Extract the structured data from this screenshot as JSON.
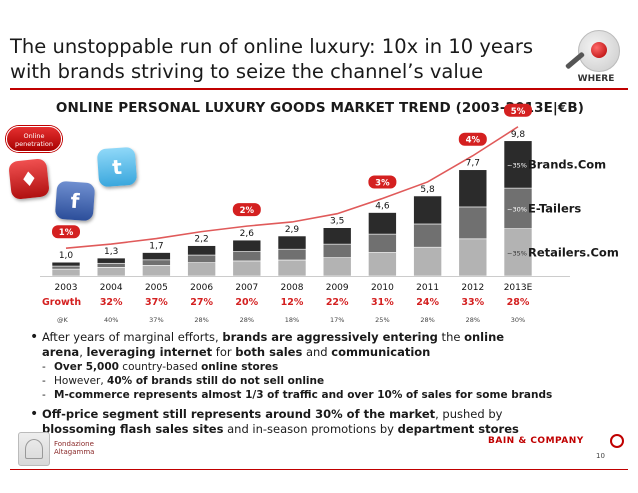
{
  "slide": {
    "title_line1": "The unstoppable run of online luxury: 10x in 10 years",
    "title_line2": "with brands striving to seize the channel’s value",
    "logo_label": "WHERE",
    "online_badge_line1": "Online",
    "online_badge_line2": "penetration",
    "icons": [
      "tag-app-icon",
      "facebook-app-icon",
      "twitter-app-icon"
    ],
    "accent_color": "#c00000"
  },
  "chart_data": {
    "type": "bar",
    "title": "ONLINE PERSONAL LUXURY GOODS MARKET TREND (2003-2013E|€B)",
    "categories": [
      "2003",
      "2004",
      "2005",
      "2006",
      "2007",
      "2008",
      "2009",
      "2010",
      "2011",
      "2012",
      "2013E"
    ],
    "values": [
      1.0,
      1.3,
      1.7,
      2.2,
      2.6,
      2.9,
      3.5,
      4.6,
      5.8,
      7.7,
      9.8
    ],
    "value_labels": [
      "1,0",
      "1,3",
      "1,7",
      "2,2",
      "2,6",
      "2,9",
      "3,5",
      "4,6",
      "5,8",
      "7,7",
      "9,8"
    ],
    "series": [
      {
        "name": "Retailers.Com",
        "color": "#b3b3b3",
        "shares": [
          0.5,
          0.48,
          0.45,
          0.44,
          0.42,
          0.4,
          0.38,
          0.37,
          0.36,
          0.35,
          0.35
        ]
      },
      {
        "name": "E-Tailers",
        "color": "#707070",
        "shares": [
          0.22,
          0.23,
          0.24,
          0.25,
          0.26,
          0.27,
          0.28,
          0.29,
          0.29,
          0.3,
          0.3
        ]
      },
      {
        "name": "Brands.Com",
        "color": "#2b2b2b",
        "shares": [
          0.28,
          0.29,
          0.31,
          0.31,
          0.32,
          0.33,
          0.34,
          0.34,
          0.35,
          0.35,
          0.35
        ]
      }
    ],
    "segment_labels_2013E": [
      "~35%",
      "~30%",
      "~35%"
    ],
    "penetration_markers": [
      {
        "category": "2003",
        "label": "1%"
      },
      {
        "category": "2007",
        "label": "2%"
      },
      {
        "category": "2010",
        "label": "3%"
      },
      {
        "category": "2012",
        "label": "4%"
      },
      {
        "category": "2013E",
        "label": "5%"
      }
    ],
    "growth_label": "Growth",
    "growth": [
      "32%",
      "37%",
      "27%",
      "20%",
      "12%",
      "22%",
      "31%",
      "24%",
      "33%",
      "28%"
    ],
    "cagr_label": "@K",
    "cagr": [
      "40%",
      "37%",
      "28%",
      "28%",
      "18%",
      "17%",
      "25%",
      "28%",
      "28%",
      "30%"
    ],
    "ylim": [
      0,
      10
    ],
    "grid": false,
    "legend_placement": "right",
    "marker_color": "#d42020",
    "trend_line_color": "#e05a5a"
  },
  "bullets": {
    "b1_p1": "After years of marginal efforts, ",
    "b1_p2": "brands are aggressively entering",
    "b1_p3": " the ",
    "b1_p4": "online",
    "b1_p5": "arena",
    "b1_p6": ", ",
    "b1_p7": "leveraging internet",
    "b1_p8": " for ",
    "b1_p9": "both sales",
    "b1_p10": " and ",
    "b1_p11": "communication",
    "s1_p1": "Over 5,000",
    "s1_p2": " country-based ",
    "s1_p3": "online stores",
    "s2_p1": "However, ",
    "s2_p2": "40% of brands still do not sell online",
    "s3_p1": "M-commerce represents almost 1/3 of traffic and over 10% of sales for some brands",
    "b2_p1": "Off-price segment still represents around 30% of the market",
    "b2_p2": ", pushed by",
    "b2_p3": "blossoming flash sales sites",
    "b2_p4": " and in-season promotions by ",
    "b2_p5": "department stores"
  },
  "footer": {
    "org_line1": "Fondazione",
    "org_line2": "Altagamma",
    "company": "BAIN & COMPANY",
    "page_number": "10"
  }
}
